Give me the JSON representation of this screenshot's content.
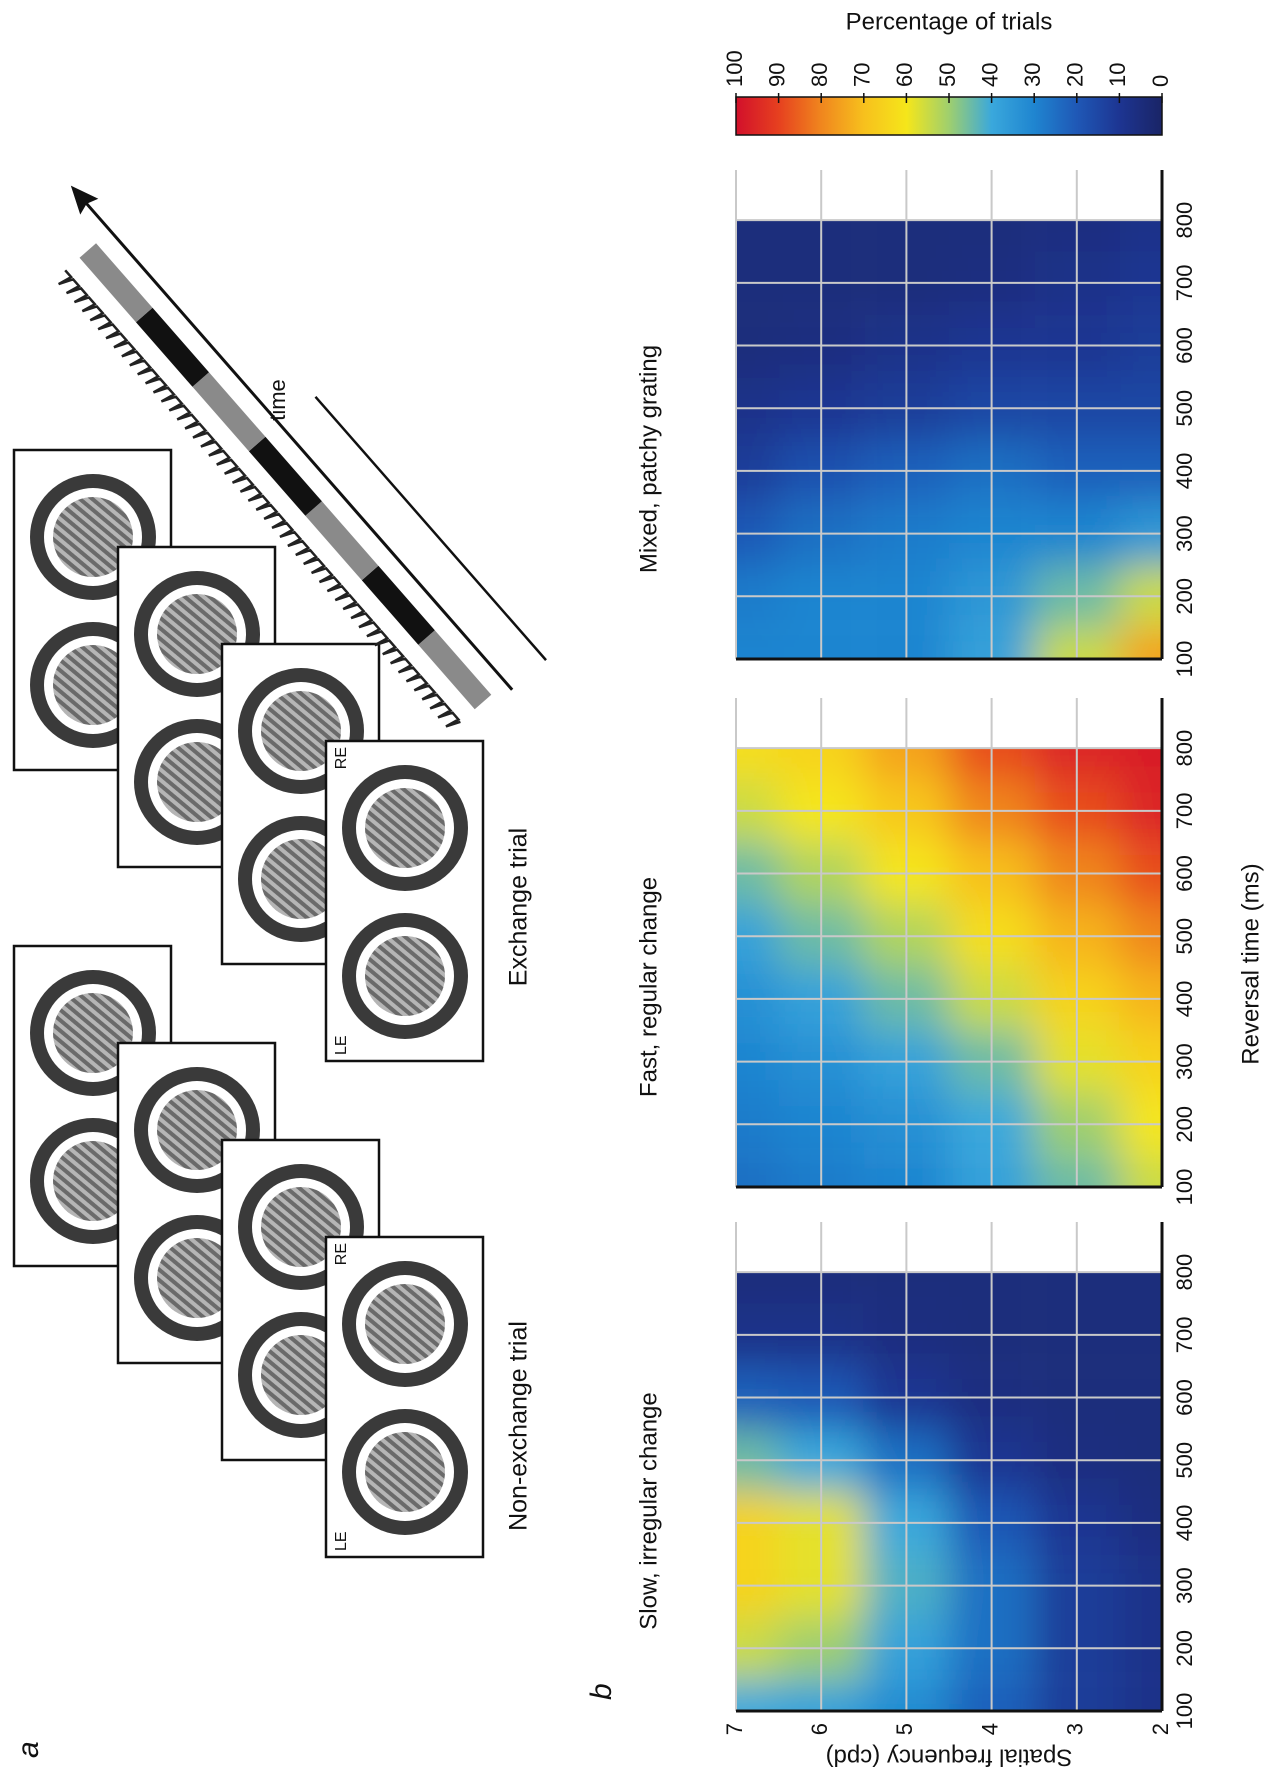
{
  "figure": {
    "panel_a_label": "a",
    "panel_b_label": "b"
  },
  "diagram": {
    "non_exchange": {
      "label": "Non-exchange trial",
      "left_eye": "LE",
      "right_eye": "RE"
    },
    "exchange": {
      "label": "Exchange trial",
      "left_eye": "LE",
      "right_eye": "RE"
    },
    "time_label": "time"
  },
  "colorbar": {
    "title": "Percentage of trials",
    "lim": [
      0,
      100
    ],
    "ticks": [
      0,
      10,
      20,
      30,
      40,
      50,
      60,
      70,
      80,
      90,
      100
    ],
    "colors": [
      "#1a2466",
      "#1d3592",
      "#1f58b6",
      "#1f85d0",
      "#3aa8dc",
      "#9fcf6e",
      "#f5e61a",
      "#f7c01d",
      "#f0861e",
      "#e6401f",
      "#d2102b"
    ]
  },
  "chart_data": [
    {
      "type": "heatmap",
      "title": "Slow, irregular change",
      "ylabel": "Spatial frequency (cpd)",
      "x": [
        100,
        200,
        300,
        400,
        500,
        600,
        700,
        800
      ],
      "y": [
        2,
        3,
        4,
        5,
        6,
        7
      ],
      "values": [
        [
          8,
          8,
          8,
          6,
          5,
          5,
          5,
          5
        ],
        [
          12,
          12,
          12,
          10,
          6,
          5,
          5,
          5
        ],
        [
          22,
          25,
          25,
          20,
          10,
          6,
          5,
          5
        ],
        [
          32,
          38,
          42,
          40,
          25,
          10,
          6,
          5
        ],
        [
          38,
          50,
          58,
          58,
          40,
          20,
          8,
          5
        ],
        [
          40,
          55,
          65,
          65,
          45,
          22,
          8,
          5
        ]
      ],
      "xlim": [
        100,
        880
      ],
      "ylim": [
        2,
        7
      ],
      "xticks": [
        100,
        200,
        300,
        400,
        500,
        600,
        700,
        800
      ],
      "yticks": [
        2,
        3,
        4,
        5,
        6,
        7
      ],
      "ytick_labels": true,
      "grid": true
    },
    {
      "type": "heatmap",
      "title": "Fast, regular change",
      "xlabel": "Reversal time (ms)",
      "x": [
        100,
        200,
        300,
        400,
        500,
        600,
        700,
        800
      ],
      "y": [
        2,
        3,
        4,
        5,
        6,
        7
      ],
      "values": [
        [
          55,
          60,
          65,
          72,
          80,
          88,
          95,
          97
        ],
        [
          45,
          50,
          58,
          65,
          72,
          80,
          88,
          95
        ],
        [
          38,
          40,
          45,
          55,
          62,
          70,
          80,
          88
        ],
        [
          30,
          33,
          38,
          45,
          52,
          60,
          68,
          75
        ],
        [
          28,
          30,
          33,
          38,
          45,
          52,
          60,
          65
        ],
        [
          25,
          28,
          30,
          33,
          38,
          45,
          55,
          62
        ]
      ],
      "xlim": [
        100,
        880
      ],
      "ylim": [
        2,
        7
      ],
      "xticks": [
        100,
        200,
        300,
        400,
        500,
        600,
        700,
        800
      ],
      "yticks": [
        2,
        3,
        4,
        5,
        6,
        7
      ],
      "ytick_labels": false,
      "grid": true
    },
    {
      "type": "heatmap",
      "title": "Mixed, patchy grating",
      "x": [
        100,
        200,
        300,
        400,
        500,
        600,
        700,
        800
      ],
      "y": [
        2,
        3,
        4,
        5,
        6,
        7
      ],
      "values": [
        [
          75,
          55,
          35,
          22,
          15,
          12,
          10,
          8
        ],
        [
          55,
          45,
          30,
          22,
          15,
          10,
          8,
          6
        ],
        [
          38,
          35,
          30,
          25,
          15,
          10,
          6,
          5
        ],
        [
          30,
          30,
          28,
          22,
          12,
          8,
          5,
          5
        ],
        [
          30,
          30,
          25,
          18,
          10,
          6,
          5,
          5
        ],
        [
          30,
          28,
          20,
          12,
          8,
          5,
          5,
          5
        ]
      ],
      "xlim": [
        100,
        880
      ],
      "ylim": [
        2,
        7
      ],
      "xticks": [
        100,
        200,
        300,
        400,
        500,
        600,
        700,
        800
      ],
      "yticks": [
        2,
        3,
        4,
        5,
        6,
        7
      ],
      "ytick_labels": false,
      "grid": true
    }
  ]
}
